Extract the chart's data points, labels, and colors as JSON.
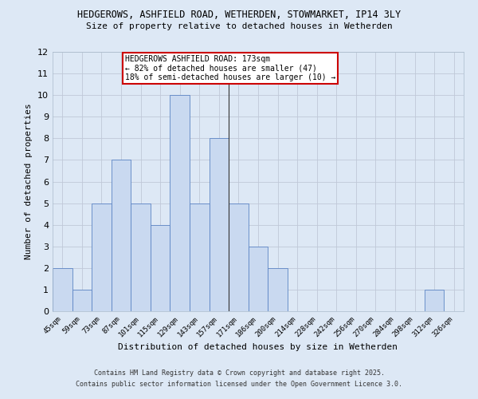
{
  "title1": "HEDGEROWS, ASHFIELD ROAD, WETHERDEN, STOWMARKET, IP14 3LY",
  "title2": "Size of property relative to detached houses in Wetherden",
  "xlabel": "Distribution of detached houses by size in Wetherden",
  "ylabel": "Number of detached properties",
  "categories": [
    "45sqm",
    "59sqm",
    "73sqm",
    "87sqm",
    "101sqm",
    "115sqm",
    "129sqm",
    "143sqm",
    "157sqm",
    "171sqm",
    "186sqm",
    "200sqm",
    "214sqm",
    "228sqm",
    "242sqm",
    "256sqm",
    "270sqm",
    "284sqm",
    "298sqm",
    "312sqm",
    "326sqm"
  ],
  "values": [
    2,
    1,
    5,
    7,
    5,
    4,
    10,
    5,
    8,
    5,
    3,
    2,
    0,
    0,
    0,
    0,
    0,
    0,
    0,
    1,
    0
  ],
  "bar_color": "#c9d9f0",
  "bar_edge_color": "#5b84c4",
  "highlight_index": 9,
  "highlight_line_color": "#333333",
  "annotation_box_color": "#ffffff",
  "annotation_border_color": "#cc0000",
  "annotation_text_line1": "HEDGEROWS ASHFIELD ROAD: 173sqm",
  "annotation_text_line2": "← 82% of detached houses are smaller (47)",
  "annotation_text_line3": "18% of semi-detached houses are larger (10) →",
  "ylim": [
    0,
    12
  ],
  "yticks": [
    0,
    1,
    2,
    3,
    4,
    5,
    6,
    7,
    8,
    9,
    10,
    11,
    12
  ],
  "grid_color": "#c0c8d8",
  "bg_color": "#dde8f5",
  "footer_line1": "Contains HM Land Registry data © Crown copyright and database right 2025.",
  "footer_line2": "Contains public sector information licensed under the Open Government Licence 3.0."
}
